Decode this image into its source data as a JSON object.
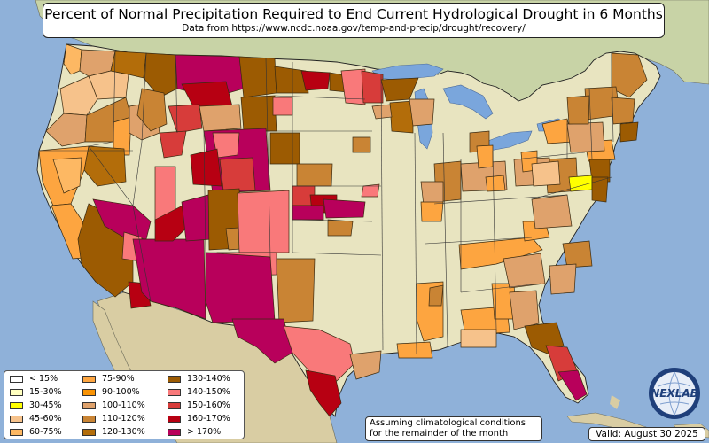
{
  "title": "Percent of Normal Precipitation Required to End Current Hydrological Drought in 6 Months",
  "subtitle": "Data from https://www.ncdc.noaa.gov/temp-and-precip/drought/recovery/",
  "note": [
    "Assuming climatological conditions",
    "for the remainder of the month"
  ],
  "valid": "Valid: August 30 2025",
  "logo_text": "NEXLAB",
  "legend": [
    {
      "label": "< 15%",
      "color": "#ffffff"
    },
    {
      "label": "15-30%",
      "color": "#ffffbf"
    },
    {
      "label": "30-45%",
      "color": "#ffff00"
    },
    {
      "label": "45-60%",
      "color": "#f6c28b"
    },
    {
      "label": "60-75%",
      "color": "#fdb863"
    },
    {
      "label": "75-90%",
      "color": "#fda540"
    },
    {
      "label": "90-100%",
      "color": "#f99304"
    },
    {
      "label": "100-110%",
      "color": "#dfa26c"
    },
    {
      "label": "110-120%",
      "color": "#c98434"
    },
    {
      "label": "120-130%",
      "color": "#b36d0a"
    },
    {
      "label": "130-140%",
      "color": "#9c5b02"
    },
    {
      "label": "140-150%",
      "color": "#f9797a"
    },
    {
      "label": "150-160%",
      "color": "#d73c3a"
    },
    {
      "label": "160-170%",
      "color": "#b70012"
    },
    {
      "label": "> 170%",
      "color": "#b8005b"
    }
  ],
  "colors": {
    "ocean": "#8fb1d9",
    "land": "#e8e4c0",
    "canada": "#c8d3a6",
    "mexico": "#d9cda3",
    "lake": "#7aa6dc"
  }
}
